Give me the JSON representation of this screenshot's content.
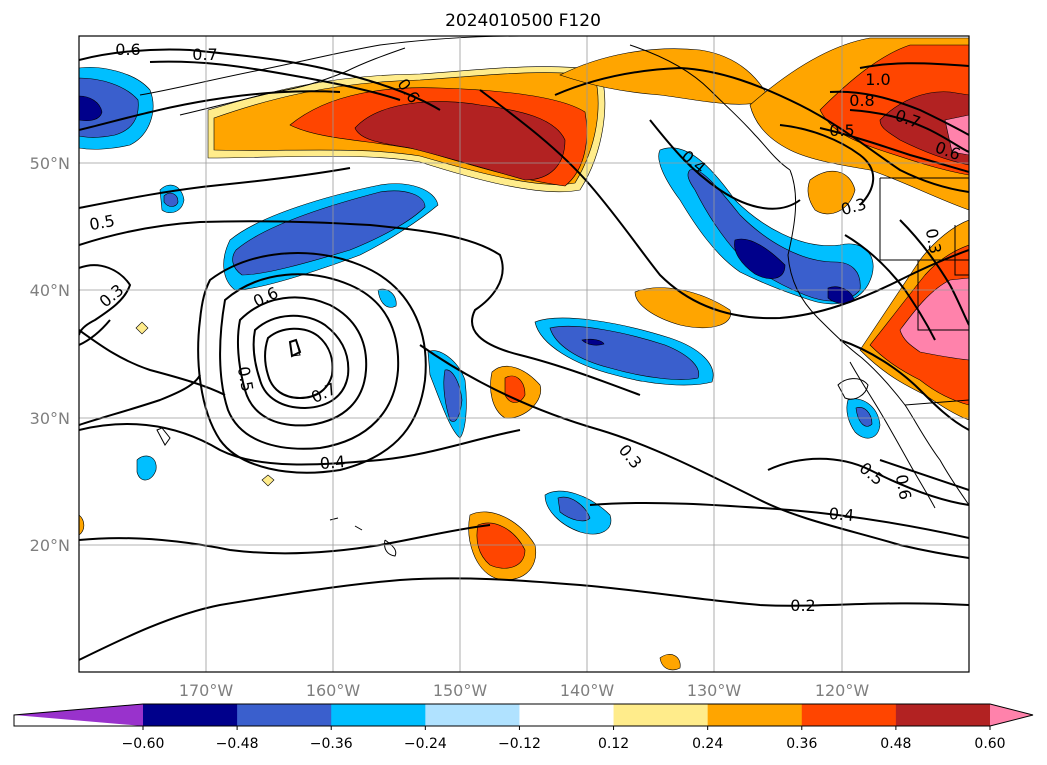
{
  "title": "2024010500 F120",
  "map": {
    "lat_ticks": [
      "50°N",
      "40°N",
      "30°N",
      "20°N"
    ],
    "lon_ticks": [
      "170°W",
      "160°W",
      "150°W",
      "140°W",
      "130°W",
      "120°W"
    ],
    "contour_labels": [
      "0.6",
      "0.7",
      "0.6",
      "0.5",
      "0.3",
      "0.6",
      "0.5",
      "0.7",
      "0.4",
      "0.4",
      "0.3",
      "0.5",
      "0.6",
      "0.4",
      "0.2",
      "1.0",
      "0.8",
      "0.7",
      "0.5",
      "0.6",
      "0.3",
      "0.3"
    ],
    "colors": {
      "purple": "#9932cc",
      "navy": "#00008b",
      "royalblue": "#3a5fcd",
      "deepskyblue": "#00bfff",
      "lightblue": "#b0e2ff",
      "white": "#ffffff",
      "lightyellow": "#ffec8b",
      "orange": "#ffa500",
      "orangered": "#ff4500",
      "firebrick": "#b22222",
      "pink": "#ff82ab"
    }
  },
  "colorbar": {
    "labels": [
      "−0.60",
      "−0.48",
      "−0.36",
      "−0.24",
      "−0.12",
      "0.12",
      "0.24",
      "0.36",
      "0.48",
      "0.60"
    ],
    "colors": [
      "#9932cc",
      "#00008b",
      "#3a5fcd",
      "#00bfff",
      "#b0e2ff",
      "#ffffff",
      "#ffec8b",
      "#ffa500",
      "#ff4500",
      "#b22222",
      "#ff82ab"
    ]
  }
}
